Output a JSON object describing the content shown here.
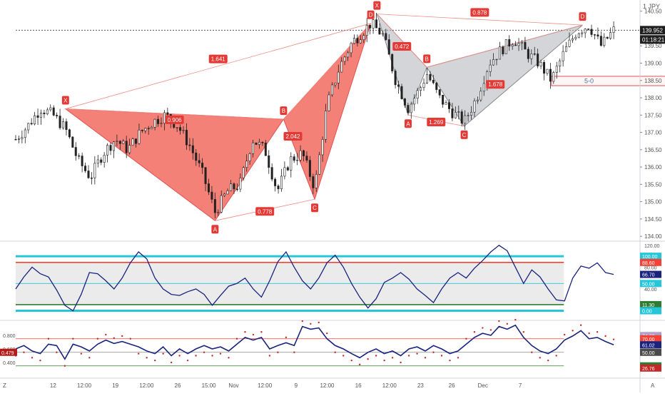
{
  "header": {
    "pair_label": "1 JPY"
  },
  "main": {
    "price_ticks": [
      "140.50",
      "140.00",
      "139.50",
      "139.00",
      "138.50",
      "138.00",
      "137.50",
      "137.00",
      "136.50",
      "136.00",
      "135.50",
      "135.00",
      "134.50",
      "134.00"
    ],
    "current_price": "139.952",
    "countdown": "01:18:21",
    "zone_label": "5-0",
    "harmonic_patterns": [
      {
        "name": "bearish-harmonic",
        "color": "#f26b5f",
        "points": [
          {
            "label": "X",
            "t": 8,
            "p": 137.68
          },
          {
            "label": "A",
            "t": 32,
            "p": 134.45
          },
          {
            "label": "B",
            "t": 43,
            "p": 137.38
          },
          {
            "label": "C",
            "t": 48,
            "p": 135.07
          },
          {
            "label": "D",
            "t": 57,
            "p": 140.15
          }
        ],
        "ratios": [
          "0.906",
          "0.778",
          "2.042",
          "1.641"
        ]
      },
      {
        "name": "bullish-harmonic",
        "color": "#b0b3b8",
        "points": [
          {
            "label": "X",
            "t": 58,
            "p": 140.42
          },
          {
            "label": "A",
            "t": 63,
            "p": 137.5
          },
          {
            "label": "B",
            "t": 66,
            "p": 138.88
          },
          {
            "label": "C",
            "t": 72,
            "p": 137.18
          },
          {
            "label": "D",
            "t": 91,
            "p": 140.1
          }
        ],
        "ratios": [
          "0.472",
          "1.269",
          "1.678",
          "0.878"
        ]
      }
    ]
  },
  "osc1": {
    "ticks": [
      "120.00",
      "80.00",
      "40.00",
      "0.00"
    ],
    "badges": [
      {
        "text": "100.00",
        "color": "#26c6da",
        "value": 100
      },
      {
        "text": "88.60",
        "color": "#f44336",
        "value": 88.6
      },
      {
        "text": "66.70",
        "color": "#1a237e",
        "value": 66.7
      },
      {
        "text": "50.00",
        "color": "#26c6da",
        "value": 50
      },
      {
        "text": "11.30",
        "color": "#2e7d32",
        "value": 11.3
      },
      {
        "text": "0.00",
        "color": "#26c6da",
        "value": 0
      }
    ]
  },
  "osc2": {
    "ticks": [
      "0.800",
      "0.600",
      "0.400"
    ],
    "badges": [
      {
        "text": "74.69",
        "color": "#b0a0c8",
        "value": 74.69
      },
      {
        "text": "70.00",
        "color": "#f44336",
        "value": 70
      },
      {
        "text": "61.02",
        "color": "#1a237e",
        "value": 61.02
      },
      {
        "text": "50.00",
        "color": "#4a4a4a",
        "value": 50
      },
      {
        "text": "30.00",
        "color": "#2e7d32",
        "value": 30
      },
      {
        "text": "26.76",
        "color": "#c62828",
        "value": 26.76
      }
    ],
    "left_badge": "0.479"
  },
  "time_axis": {
    "labels": [
      {
        "text": "12",
        "t": 6
      },
      {
        "text": "12:00",
        "t": 11
      },
      {
        "text": "19",
        "t": 16
      },
      {
        "text": "12:00",
        "t": 21
      },
      {
        "text": "26",
        "t": 26
      },
      {
        "text": "15:00",
        "t": 31
      },
      {
        "text": "Nov",
        "t": 35
      },
      {
        "text": "12:00",
        "t": 40
      },
      {
        "text": "9",
        "t": 45
      },
      {
        "text": "12:00",
        "t": 50
      },
      {
        "text": "16",
        "t": 55
      },
      {
        "text": "12:00",
        "t": 60
      },
      {
        "text": "23",
        "t": 65
      },
      {
        "text": "26",
        "t": 70
      },
      {
        "text": "Dec",
        "t": 75
      },
      {
        "text": "7",
        "t": 81
      }
    ],
    "left_corner": "Z",
    "right_corner": "A"
  },
  "chart_data": [
    {
      "type": "candlestick",
      "title": "",
      "y_unit": "price",
      "ylim": [
        133.9,
        140.7
      ],
      "current_price": 139.952,
      "zone": {
        "label": "5-0",
        "from": 138.35,
        "to": 138.62
      },
      "close_path": [
        {
          "t": 0,
          "p": 136.8
        },
        {
          "t": 2,
          "p": 137.2
        },
        {
          "t": 4,
          "p": 137.7
        },
        {
          "t": 6,
          "p": 137.5
        },
        {
          "t": 8,
          "p": 137.1
        },
        {
          "t": 10,
          "p": 136.2
        },
        {
          "t": 12,
          "p": 135.7
        },
        {
          "t": 14,
          "p": 136.4
        },
        {
          "t": 16,
          "p": 136.8
        },
        {
          "t": 18,
          "p": 136.5
        },
        {
          "t": 20,
          "p": 137.0
        },
        {
          "t": 22,
          "p": 137.3
        },
        {
          "t": 24,
          "p": 137.5
        },
        {
          "t": 26,
          "p": 137.2
        },
        {
          "t": 28,
          "p": 136.6
        },
        {
          "t": 30,
          "p": 135.8
        },
        {
          "t": 32,
          "p": 134.7
        },
        {
          "t": 34,
          "p": 135.3
        },
        {
          "t": 36,
          "p": 135.5
        },
        {
          "t": 38,
          "p": 136.8
        },
        {
          "t": 40,
          "p": 136.5
        },
        {
          "t": 42,
          "p": 135.3
        },
        {
          "t": 44,
          "p": 136.2
        },
        {
          "t": 46,
          "p": 136.4
        },
        {
          "t": 48,
          "p": 135.4
        },
        {
          "t": 50,
          "p": 137.8
        },
        {
          "t": 52,
          "p": 138.9
        },
        {
          "t": 54,
          "p": 139.6
        },
        {
          "t": 57,
          "p": 140.15
        },
        {
          "t": 59,
          "p": 139.8
        },
        {
          "t": 61,
          "p": 138.5
        },
        {
          "t": 63,
          "p": 137.7
        },
        {
          "t": 65,
          "p": 138.3
        },
        {
          "t": 66,
          "p": 138.7
        },
        {
          "t": 68,
          "p": 138.0
        },
        {
          "t": 70,
          "p": 137.6
        },
        {
          "t": 72,
          "p": 137.3
        },
        {
          "t": 74,
          "p": 138.0
        },
        {
          "t": 76,
          "p": 139.0
        },
        {
          "t": 78,
          "p": 139.4
        },
        {
          "t": 80,
          "p": 139.7
        },
        {
          "t": 82,
          "p": 139.3
        },
        {
          "t": 84,
          "p": 139.0
        },
        {
          "t": 86,
          "p": 138.5
        },
        {
          "t": 88,
          "p": 139.3
        },
        {
          "t": 90,
          "p": 139.9
        },
        {
          "t": 92,
          "p": 140.1
        },
        {
          "t": 94,
          "p": 139.5
        },
        {
          "t": 96,
          "p": 139.95
        }
      ]
    },
    {
      "type": "line",
      "title": "",
      "ylim": [
        -15,
        125
      ],
      "levels": [
        100,
        88.6,
        50,
        11.3,
        0
      ],
      "series": [
        {
          "values": [
            40,
            62,
            80,
            68,
            62,
            38,
            10,
            0,
            30,
            70,
            68,
            55,
            40,
            60,
            88,
            108,
            95,
            60,
            40,
            30,
            28,
            35,
            40,
            30,
            10,
            28,
            45,
            50,
            60,
            40,
            25,
            55,
            90,
            108,
            80,
            55,
            40,
            60,
            88,
            102,
            80,
            50,
            25,
            5,
            22,
            52,
            60,
            70,
            58,
            40,
            28,
            15,
            40,
            60,
            70,
            60,
            78,
            92,
            108,
            120,
            110,
            80,
            50,
            75,
            62,
            40,
            20,
            18,
            60,
            82,
            78,
            88,
            70,
            66.7
          ]
        }
      ]
    },
    {
      "type": "line",
      "title": "",
      "ylim": [
        15,
        95
      ],
      "levels": [
        70,
        50,
        30
      ],
      "series": [
        {
          "values": [
            55,
            60,
            52,
            48,
            62,
            60,
            40,
            62,
            58,
            52,
            62,
            68,
            63,
            66,
            62,
            58,
            52,
            48,
            58,
            45,
            55,
            48,
            55,
            60,
            55,
            58,
            52,
            62,
            72,
            68,
            72,
            55,
            60,
            64,
            60,
            88,
            84,
            86,
            70,
            60,
            55,
            48,
            42,
            50,
            55,
            48,
            52,
            45,
            55,
            58,
            52,
            60,
            55,
            48,
            52,
            62,
            72,
            78,
            75,
            88,
            84,
            90,
            72,
            60,
            52,
            48,
            55,
            68,
            74,
            82,
            70,
            72,
            66,
            61.02
          ]
        }
      ]
    }
  ]
}
